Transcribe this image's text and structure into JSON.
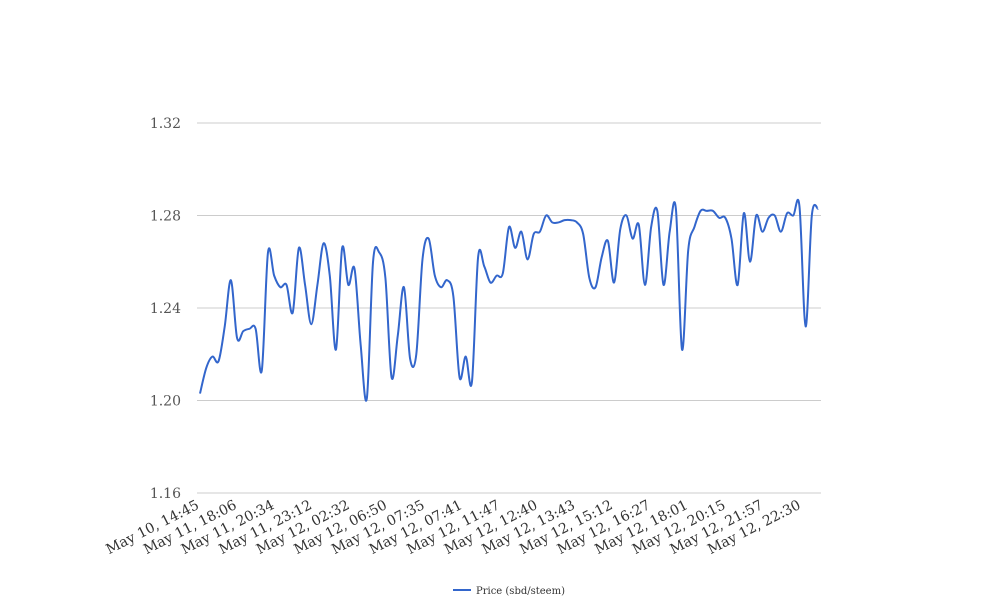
{
  "chart_data": {
    "type": "line",
    "title": "",
    "xlabel": "",
    "ylabel": "",
    "ylim": [
      1.16,
      1.32
    ],
    "yticks": [
      "1.32",
      "1.28",
      "1.24",
      "1.20",
      "1.16"
    ],
    "grid": true,
    "legend_position": "bottom",
    "xtick_labels": [
      "May 10, 14:45",
      "May 11, 18:06",
      "May 11, 20:34",
      "May 11, 23:12",
      "May 12, 02:32",
      "May 12, 06:50",
      "May 12, 07:35",
      "May 12, 07:41",
      "May 12, 11:47",
      "May 12, 12:40",
      "May 12, 13:43",
      "May 12, 15:12",
      "May 12, 16:27",
      "May 12, 18:01",
      "May 12, 20:15",
      "May 12, 21:57",
      "May 12, 22:30"
    ],
    "series": [
      {
        "name": "Price (sbd/steem)",
        "color": "#3366cc",
        "values": [
          1.203,
          1.214,
          1.219,
          1.217,
          1.232,
          1.252,
          1.227,
          1.23,
          1.231,
          1.231,
          1.213,
          1.264,
          1.254,
          1.249,
          1.25,
          1.238,
          1.266,
          1.25,
          1.233,
          1.25,
          1.268,
          1.254,
          1.222,
          1.266,
          1.25,
          1.257,
          1.224,
          1.201,
          1.26,
          1.264,
          1.253,
          1.21,
          1.228,
          1.249,
          1.218,
          1.22,
          1.261,
          1.27,
          1.254,
          1.249,
          1.252,
          1.245,
          1.21,
          1.219,
          1.208,
          1.262,
          1.258,
          1.251,
          1.254,
          1.255,
          1.275,
          1.266,
          1.273,
          1.261,
          1.272,
          1.273,
          1.28,
          1.277,
          1.277,
          1.278,
          1.278,
          1.277,
          1.272,
          1.253,
          1.249,
          1.262,
          1.269,
          1.251,
          1.274,
          1.28,
          1.27,
          1.276,
          1.25,
          1.275,
          1.282,
          1.25,
          1.273,
          1.283,
          1.222,
          1.265,
          1.275,
          1.282,
          1.282,
          1.282,
          1.279,
          1.279,
          1.27,
          1.25,
          1.281,
          1.26,
          1.28,
          1.273,
          1.279,
          1.28,
          1.273,
          1.281,
          1.28,
          1.284,
          1.232,
          1.28,
          1.283
        ]
      }
    ]
  }
}
